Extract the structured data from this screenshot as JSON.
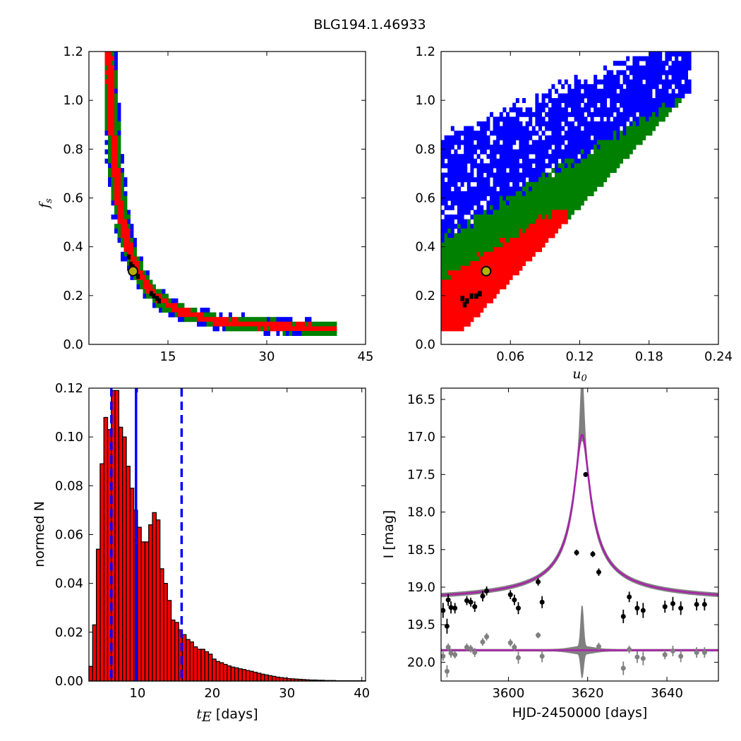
{
  "figure": {
    "title": "BLG194.1.46933"
  },
  "colors": {
    "blue": "#0000ff",
    "green": "#008000",
    "red": "#ff0000",
    "black": "#000000",
    "marker_face": "#b5b000",
    "grey": "#808080",
    "model": "#aa22aa"
  },
  "chart_data": [
    {
      "id": "fs_vs_tE",
      "type": "heatmap",
      "xlabel": "",
      "ylabel": "f_s",
      "ylabel_main": "f",
      "ylabel_sub": "s",
      "xlim": [
        3,
        45
      ],
      "ylim": [
        0,
        1.2
      ],
      "xticks": [
        15,
        30,
        45
      ],
      "yticks": [
        0.0,
        0.2,
        0.4,
        0.6,
        0.8,
        1.0,
        1.2
      ],
      "xtick_labels": [
        "15",
        "30",
        "45"
      ],
      "ytick_labels": [
        "0.0",
        "0.2",
        "0.4",
        "0.6",
        "0.8",
        "1.0",
        "1.2"
      ],
      "best_fit": {
        "x": 9.7,
        "y": 0.3
      },
      "curve": [
        [
          6.0,
          1.2
        ],
        [
          6.3,
          1.0
        ],
        [
          6.8,
          0.8
        ],
        [
          7.4,
          0.62
        ],
        [
          8.2,
          0.48
        ],
        [
          9.3,
          0.37
        ],
        [
          10.6,
          0.29
        ],
        [
          12.3,
          0.22
        ],
        [
          14.5,
          0.17
        ],
        [
          17.5,
          0.13
        ],
        [
          21.5,
          0.1
        ],
        [
          26,
          0.085
        ],
        [
          31,
          0.075
        ],
        [
          36,
          0.07
        ],
        [
          40.5,
          0.065
        ]
      ],
      "tube_width": {
        "blue": 1.2,
        "green": 0.9,
        "red": 0.5
      }
    },
    {
      "id": "fs_vs_u0",
      "type": "heatmap",
      "xlabel": "u_0",
      "xlabel_main": "u",
      "xlabel_sub": "0",
      "ylabel": "",
      "xlim": [
        0,
        0.24
      ],
      "ylim": [
        0,
        1.2
      ],
      "xticks": [
        0.06,
        0.12,
        0.18,
        0.24
      ],
      "yticks": [
        0.0,
        0.2,
        0.4,
        0.6,
        0.8,
        1.0,
        1.2
      ],
      "xtick_labels": [
        "0.06",
        "0.12",
        "0.18",
        "0.24"
      ],
      "ytick_labels": [
        "0.0",
        "0.2",
        "0.4",
        "0.6",
        "0.8",
        "1.0",
        "1.2"
      ],
      "best_fit": {
        "x": 0.039,
        "y": 0.3
      }
    },
    {
      "id": "tE_histogram",
      "type": "bar",
      "xlabel": "t_E [days]",
      "xlabel_main": "t",
      "xlabel_sub": "E",
      "xlabel_unit": " [days]",
      "ylabel": "normed N",
      "xlim": [
        3.5,
        40.5
      ],
      "ylim": [
        0,
        0.12
      ],
      "xticks": [
        10,
        20,
        30,
        40
      ],
      "yticks": [
        0.0,
        0.02,
        0.04,
        0.06,
        0.08,
        0.1,
        0.12
      ],
      "xtick_labels": [
        "10",
        "20",
        "30",
        "40"
      ],
      "ytick_labels": [
        "0.00",
        "0.02",
        "0.04",
        "0.06",
        "0.08",
        "0.10",
        "0.12"
      ],
      "bin_start": 3.5,
      "bin_width": 0.5,
      "values": [
        0.006,
        0.023,
        0.054,
        0.089,
        0.108,
        0.103,
        0.119,
        0.119,
        0.104,
        0.1,
        0.088,
        0.079,
        0.07,
        0.063,
        0.057,
        0.057,
        0.064,
        0.069,
        0.066,
        0.046,
        0.04,
        0.033,
        0.025,
        0.024,
        0.021,
        0.019,
        0.017,
        0.016,
        0.014,
        0.013,
        0.013,
        0.012,
        0.011,
        0.009,
        0.008,
        0.0075,
        0.0068,
        0.0062,
        0.0057,
        0.0054,
        0.005,
        0.0047,
        0.0043,
        0.004,
        0.0036,
        0.0032,
        0.0028,
        0.0025,
        0.0022,
        0.0019,
        0.0016,
        0.0014,
        0.0012,
        0.001,
        0.0009,
        0.0008,
        0.0007,
        0.0006,
        0.0005,
        0.0004,
        0.0004,
        0.0003,
        0.0003,
        0.0002,
        0.0002,
        0.0002,
        0.0001,
        0.0001,
        0.0001,
        0.0001,
        0.0001,
        0.0001,
        0.0001,
        0.0001
      ],
      "vlines": [
        {
          "x": 9.8,
          "style": "solid"
        },
        {
          "x": 6.5,
          "style": "dashed"
        },
        {
          "x": 15.9,
          "style": "dashed"
        }
      ]
    },
    {
      "id": "lightcurve",
      "type": "scatter",
      "xlabel": "HJD-2450000 [days]",
      "ylabel": "I [mag]",
      "xlim": [
        3583,
        3653
      ],
      "ylim": [
        20.25,
        16.35
      ],
      "xticks": [
        3600,
        3620,
        3640
      ],
      "yticks": [
        16.5,
        17.0,
        17.5,
        18.0,
        18.5,
        19.0,
        19.5,
        20.0
      ],
      "xtick_labels": [
        "3600",
        "3620",
        "3640"
      ],
      "ytick_labels": [
        "16.5",
        "17.0",
        "17.5",
        "18.0",
        "18.5",
        "19.0",
        "19.5",
        "20.0"
      ],
      "model": {
        "t0": 3618.6,
        "baseline": 19.22,
        "peak": 16.97,
        "tau": 3.6
      },
      "residual_baseline": 19.84,
      "points": [
        [
          3583.5,
          19.31,
          0.1
        ],
        [
          3584.5,
          19.52,
          0.1
        ],
        [
          3584.8,
          19.17,
          0.08
        ],
        [
          3585.5,
          19.27,
          0.08
        ],
        [
          3586.5,
          19.28,
          0.07
        ],
        [
          3589.5,
          19.18,
          0.06
        ],
        [
          3590.5,
          19.2,
          0.06
        ],
        [
          3591.5,
          19.26,
          0.07
        ],
        [
          3593.5,
          19.12,
          0.07
        ],
        [
          3594.5,
          19.05,
          0.06
        ],
        [
          3600.5,
          19.1,
          0.06
        ],
        [
          3601.5,
          19.17,
          0.07
        ],
        [
          3602.5,
          19.28,
          0.08
        ],
        [
          3607.5,
          18.93,
          0.05
        ],
        [
          3608.5,
          19.2,
          0.08
        ],
        [
          3617.2,
          18.54,
          0.04
        ],
        [
          3619.5,
          17.5,
          0.03
        ],
        [
          3621.3,
          18.56,
          0.04
        ],
        [
          3622.8,
          18.8,
          0.05
        ],
        [
          3629.0,
          19.39,
          0.09
        ],
        [
          3630.5,
          19.13,
          0.07
        ],
        [
          3632.5,
          19.28,
          0.09
        ],
        [
          3634.0,
          19.31,
          0.1
        ],
        [
          3639.5,
          19.26,
          0.08
        ],
        [
          3641.5,
          19.22,
          0.09
        ],
        [
          3643.5,
          19.28,
          0.09
        ],
        [
          3647.5,
          19.23,
          0.08
        ],
        [
          3649.5,
          19.23,
          0.08
        ]
      ],
      "residuals": [
        [
          3583.5,
          19.92,
          0.06
        ],
        [
          3584.5,
          20.12,
          0.08
        ],
        [
          3584.8,
          19.8,
          0.05
        ],
        [
          3585.5,
          19.88,
          0.06
        ],
        [
          3586.5,
          19.9,
          0.05
        ],
        [
          3589.5,
          19.8,
          0.05
        ],
        [
          3590.5,
          19.82,
          0.05
        ],
        [
          3591.5,
          19.87,
          0.06
        ],
        [
          3593.5,
          19.73,
          0.05
        ],
        [
          3594.5,
          19.66,
          0.05
        ],
        [
          3600.5,
          19.74,
          0.05
        ],
        [
          3601.5,
          19.8,
          0.05
        ],
        [
          3602.5,
          19.94,
          0.08
        ],
        [
          3607.5,
          19.64,
          0.04
        ],
        [
          3608.5,
          19.92,
          0.08
        ],
        [
          3622.8,
          19.79,
          0.05
        ],
        [
          3629.0,
          20.08,
          0.09
        ],
        [
          3630.5,
          19.83,
          0.05
        ],
        [
          3632.5,
          19.93,
          0.08
        ],
        [
          3634.0,
          19.95,
          0.09
        ],
        [
          3639.5,
          19.9,
          0.06
        ],
        [
          3641.5,
          19.85,
          0.07
        ],
        [
          3643.5,
          19.92,
          0.08
        ],
        [
          3647.5,
          19.87,
          0.07
        ],
        [
          3649.5,
          19.87,
          0.07
        ]
      ]
    }
  ]
}
